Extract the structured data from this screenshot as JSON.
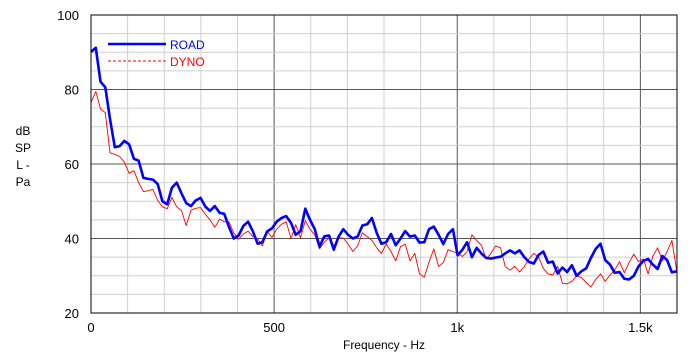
{
  "chart_data": {
    "type": "line",
    "xlabel": "Frequency - Hz",
    "ylabel_lines": [
      "dB",
      "SP",
      "L -",
      "Pa"
    ],
    "xlim": [
      0,
      1600
    ],
    "ylim": [
      20,
      100
    ],
    "x_ticks": [
      {
        "value": 0,
        "label": "0"
      },
      {
        "value": 500,
        "label": "500"
      },
      {
        "value": 1000,
        "label": "1k"
      },
      {
        "value": 1500,
        "label": "1.5k"
      }
    ],
    "y_ticks": [
      {
        "value": 20,
        "label": "20"
      },
      {
        "value": 40,
        "label": "40"
      },
      {
        "value": 60,
        "label": "60"
      },
      {
        "value": 80,
        "label": "80"
      },
      {
        "value": 100,
        "label": "100"
      }
    ],
    "grid": true,
    "legend_position": "top-left",
    "series": [
      {
        "name": "ROAD",
        "color": "#0000ff",
        "style": "solid-thick",
        "x": [
          0,
          13,
          26,
          39,
          52,
          65,
          78,
          91,
          104,
          117,
          130,
          143,
          156,
          169,
          182,
          195,
          208,
          221,
          234,
          247,
          260,
          273,
          286,
          299,
          312,
          325,
          338,
          351,
          364,
          377,
          390,
          403,
          416,
          429,
          442,
          455,
          468,
          481,
          494,
          507,
          520,
          533,
          546,
          559,
          572,
          585,
          598,
          611,
          624,
          637,
          650,
          663,
          676,
          689,
          702,
          715,
          728,
          741,
          754,
          767,
          780,
          793,
          806,
          819,
          832,
          845,
          858,
          871,
          884,
          897,
          910,
          923,
          936,
          949,
          962,
          975,
          988,
          1001,
          1014,
          1027,
          1040,
          1053,
          1066,
          1079,
          1092,
          1105,
          1118,
          1131,
          1144,
          1157,
          1170,
          1183,
          1196,
          1209,
          1222,
          1235,
          1248,
          1261,
          1274,
          1287,
          1300,
          1313,
          1326,
          1339,
          1352,
          1365,
          1378,
          1391,
          1404,
          1417,
          1430,
          1443,
          1456,
          1469,
          1482,
          1495,
          1508,
          1521,
          1534,
          1547,
          1560,
          1573,
          1586,
          1599
        ],
        "values": [
          90.1,
          91.2,
          82.1,
          80.6,
          72.1,
          64.5,
          64.8,
          66.2,
          65.3,
          61.4,
          60.9,
          56.3,
          56.0,
          55.8,
          54.6,
          50.0,
          49.2,
          53.6,
          55.0,
          52.1,
          49.5,
          48.7,
          50.2,
          50.9,
          48.6,
          47.4,
          48.7,
          46.9,
          46.6,
          43.0,
          40.0,
          40.8,
          43.4,
          44.5,
          41.9,
          38.6,
          39.0,
          41.9,
          42.7,
          44.5,
          45.5,
          46.0,
          44.2,
          41.0,
          42.0,
          48.0,
          45.0,
          42.5,
          37.8,
          40.6,
          40.8,
          37.0,
          40.5,
          42.5,
          41.0,
          40.0,
          40.5,
          43.5,
          43.8,
          45.5,
          41.5,
          38.6,
          39.0,
          41.2,
          38.2,
          40.0,
          42.0,
          40.5,
          40.8,
          38.9,
          39.0,
          42.5,
          43.2,
          41.0,
          38.5,
          41.2,
          42.5,
          35.5,
          37.0,
          39.0,
          35.0,
          37.5,
          36.0,
          34.8,
          34.6,
          34.9,
          35.1,
          36.0,
          36.8,
          36.0,
          36.8,
          35.0,
          33.7,
          33.3,
          35.6,
          36.5,
          33.5,
          33.8,
          30.6,
          32.2,
          31.0,
          32.8,
          30.0,
          31.2,
          32.0,
          34.8,
          37.2,
          38.6,
          34.2,
          33.0,
          30.8,
          31.0,
          29.2,
          29.0,
          30.0,
          32.5,
          34.0,
          34.5,
          33.0,
          31.8,
          35.3,
          34.2,
          30.9,
          31.2
        ]
      },
      {
        "name": "DYNO",
        "color": "#ff0000",
        "style": "thin",
        "x": [
          0,
          13,
          26,
          39,
          52,
          65,
          78,
          91,
          104,
          117,
          130,
          143,
          156,
          169,
          182,
          195,
          208,
          221,
          234,
          247,
          260,
          273,
          286,
          299,
          312,
          325,
          338,
          351,
          364,
          377,
          390,
          403,
          416,
          429,
          442,
          455,
          468,
          481,
          494,
          507,
          520,
          533,
          546,
          559,
          572,
          585,
          598,
          611,
          624,
          637,
          650,
          663,
          676,
          689,
          702,
          715,
          728,
          741,
          754,
          767,
          780,
          793,
          806,
          819,
          832,
          845,
          858,
          871,
          884,
          897,
          910,
          923,
          936,
          949,
          962,
          975,
          988,
          1001,
          1014,
          1027,
          1040,
          1053,
          1066,
          1079,
          1092,
          1105,
          1118,
          1131,
          1144,
          1157,
          1170,
          1183,
          1196,
          1209,
          1222,
          1235,
          1248,
          1261,
          1274,
          1287,
          1300,
          1313,
          1326,
          1339,
          1352,
          1365,
          1378,
          1391,
          1404,
          1417,
          1430,
          1443,
          1456,
          1469,
          1482,
          1495,
          1508,
          1521,
          1534,
          1547,
          1560,
          1573,
          1586,
          1599
        ],
        "values": [
          76.5,
          79.5,
          74.8,
          73.8,
          63.0,
          62.6,
          62.0,
          60.5,
          57.5,
          58.2,
          55.0,
          52.6,
          52.8,
          53.2,
          50.2,
          48.5,
          48.0,
          51.0,
          48.5,
          47.5,
          43.5,
          47.6,
          48.1,
          48.3,
          46.5,
          45.0,
          43.0,
          45.2,
          44.5,
          44.4,
          41.5,
          39.8,
          41.2,
          42.0,
          40.5,
          40.0,
          38.0,
          42.0,
          40.3,
          42.5,
          43.8,
          44.5,
          40.0,
          43.7,
          40.2,
          44.8,
          42.5,
          41.0,
          37.2,
          39.0,
          40.2,
          38.0,
          40.2,
          40.1,
          38.5,
          36.5,
          38.0,
          41.5,
          40.5,
          39.5,
          37.5,
          36.0,
          38.5,
          36.5,
          34.0,
          37.8,
          38.5,
          34.0,
          36.0,
          30.5,
          29.6,
          33.6,
          37.2,
          32.5,
          33.5,
          37.0,
          36.5,
          36.0,
          35.2,
          36.5,
          41.0,
          39.5,
          38.2,
          34.5,
          36.0,
          38.0,
          37.5,
          32.5,
          31.5,
          32.5,
          31.0,
          32.5,
          34.5,
          36.0,
          35.0,
          32.0,
          30.5,
          30.2,
          32.5,
          28.0,
          27.8,
          28.5,
          30.0,
          29.5,
          28.2,
          27.0,
          29.0,
          30.5,
          28.5,
          30.2,
          31.5,
          33.8,
          30.8,
          33.5,
          35.8,
          33.8,
          34.5,
          30.5,
          35.2,
          37.5,
          34.0,
          36.5,
          39.5,
          31.5
        ]
      }
    ]
  }
}
